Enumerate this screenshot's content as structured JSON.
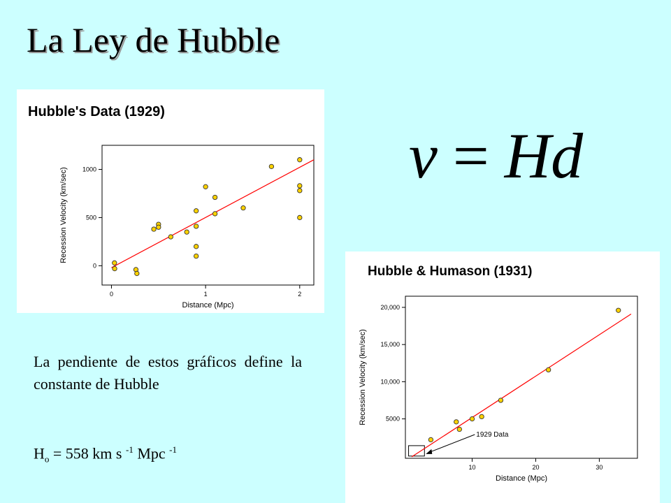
{
  "slide": {
    "title": "La Ley de Hubble",
    "equation": {
      "lhs": "v",
      "sign": "=",
      "rhs": "Hd"
    },
    "description": "La pendiente de estos gráficos define la constante de Hubble",
    "constant": {
      "symbol": "H",
      "sub": "o",
      "eq": " = 558 km s ",
      "exp1": "-1",
      "unit2": " Mpc ",
      "exp2": "-1"
    }
  },
  "colors": {
    "background": "#ccffff",
    "fit_line": "#ff0000",
    "point_fill": "#ffd200",
    "point_stroke": "#333333"
  },
  "chart_data": [
    {
      "type": "scatter",
      "title": "Hubble's Data (1929)",
      "xlabel": "Distance (Mpc)",
      "ylabel": "Recession Velocity (km/sec)",
      "xlim": [
        -0.1,
        2.15
      ],
      "ylim": [
        -200,
        1250
      ],
      "xticks": [
        0,
        1,
        2
      ],
      "xtick_labels": [
        "0",
        "1",
        "2"
      ],
      "yticks": [
        0,
        500,
        1000
      ],
      "ytick_labels": [
        "0",
        "500",
        "1000"
      ],
      "points": [
        [
          0.032,
          30
        ],
        [
          0.034,
          -30
        ],
        [
          0.26,
          -40
        ],
        [
          0.27,
          -80
        ],
        [
          0.45,
          380
        ],
        [
          0.5,
          430
        ],
        [
          0.5,
          400
        ],
        [
          0.63,
          300
        ],
        [
          0.8,
          350
        ],
        [
          0.9,
          570
        ],
        [
          0.9,
          410
        ],
        [
          0.9,
          200
        ],
        [
          0.9,
          100
        ],
        [
          1.0,
          820
        ],
        [
          1.1,
          710
        ],
        [
          1.1,
          540
        ],
        [
          1.4,
          600
        ],
        [
          1.7,
          1030
        ],
        [
          2.0,
          1100
        ],
        [
          2.0,
          830
        ],
        [
          2.0,
          780
        ],
        [
          2.0,
          500
        ]
      ],
      "fit": [
        [
          0,
          -20
        ],
        [
          2.15,
          1100
        ]
      ]
    },
    {
      "type": "scatter",
      "title": "Hubble & Humason (1931)",
      "xlabel": "Distance (Mpc)",
      "ylabel": "Recession Velocity (km/sec)",
      "xlim": [
        -0.5,
        36
      ],
      "ylim": [
        -300,
        21500
      ],
      "xticks": [
        10,
        20,
        30
      ],
      "xtick_labels": [
        "10",
        "20",
        "30"
      ],
      "yticks": [
        5000,
        10000,
        15000,
        20000
      ],
      "ytick_labels": [
        "5000",
        "10,000",
        "15,000",
        "20,000"
      ],
      "points": [
        [
          3.5,
          2200
        ],
        [
          7.5,
          4600
        ],
        [
          8,
          3600
        ],
        [
          10,
          5000
        ],
        [
          11.5,
          5300
        ],
        [
          14.5,
          7500
        ],
        [
          22,
          11600
        ],
        [
          33,
          19600
        ]
      ],
      "fit": [
        [
          0.5,
          -100
        ],
        [
          35,
          19100
        ]
      ],
      "annotation": "1929 Data",
      "annotation_box": {
        "x": [
          0,
          2.5
        ],
        "y": [
          0,
          1400
        ]
      }
    }
  ]
}
